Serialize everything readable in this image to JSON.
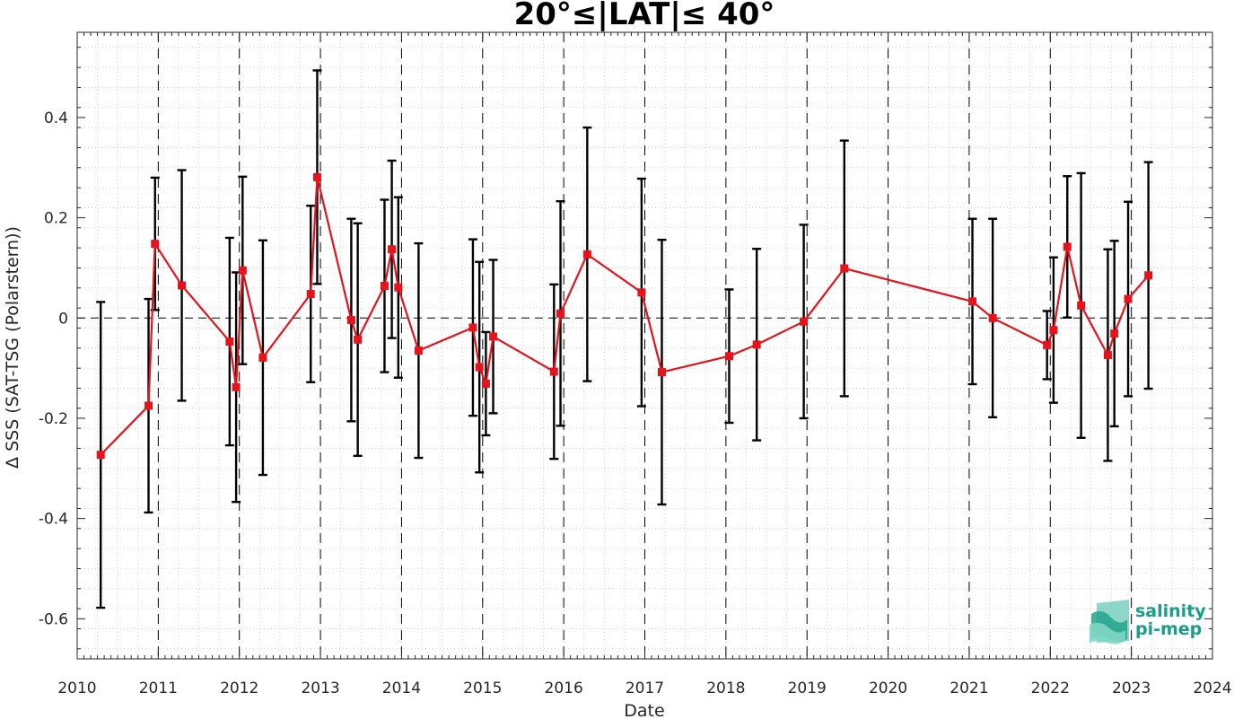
{
  "chart_data": {
    "type": "scatter",
    "title": "20°≤|LAT|≤ 40°",
    "xlabel": "Date",
    "ylabel": "Δ SSS (SAT-TSG (Polarstern))",
    "xlim": [
      2010,
      2024
    ],
    "ylim": [
      -0.68,
      0.57
    ],
    "x_ticks": [
      "2010",
      "2011",
      "2012",
      "2013",
      "2014",
      "2015",
      "2016",
      "2017",
      "2018",
      "2019",
      "2020",
      "2021",
      "2022",
      "2023",
      "2024"
    ],
    "y_ticks": [
      "-0.6",
      "-0.4",
      "-0.2",
      "0",
      "0.2",
      "0.4"
    ],
    "grid": true,
    "zero_line": true,
    "year_dividers": true,
    "colors": {
      "line": "#e6131d",
      "marker": "#e6131d",
      "errorbar": "#000000",
      "grid": "#c8c8c8"
    },
    "series": [
      {
        "x": [
          2010.29,
          2010.88,
          2010.96,
          2011.29,
          2011.88,
          2011.96,
          2012.04,
          2012.29,
          2012.88,
          2012.96,
          2013.38,
          2013.46,
          2013.79,
          2013.88,
          2013.96,
          2014.21,
          2014.88,
          2014.96,
          2015.04,
          2015.13,
          2015.88,
          2015.96,
          2016.29,
          2016.96,
          2017.21,
          2018.04,
          2018.38,
          2018.96,
          2019.46,
          2021.04,
          2021.29,
          2021.96,
          2022.04,
          2022.21,
          2022.38,
          2022.71,
          2022.79,
          2022.96,
          2023.21
        ],
        "y": [
          -0.273,
          -0.175,
          0.148,
          0.065,
          -0.047,
          -0.138,
          0.095,
          -0.079,
          0.048,
          0.281,
          -0.004,
          -0.043,
          0.064,
          0.137,
          0.061,
          -0.065,
          -0.019,
          -0.098,
          -0.131,
          -0.037,
          -0.107,
          0.009,
          0.127,
          0.051,
          -0.108,
          -0.076,
          -0.053,
          -0.007,
          0.099,
          0.033,
          0.0,
          -0.054,
          -0.024,
          0.142,
          0.025,
          -0.074,
          -0.031,
          0.038,
          0.085
        ],
        "err": [
          0.305,
          0.213,
          0.132,
          0.23,
          0.207,
          0.229,
          0.187,
          0.234,
          0.176,
          0.213,
          0.202,
          0.232,
          0.172,
          0.177,
          0.18,
          0.214,
          0.176,
          0.21,
          0.103,
          0.153,
          0.174,
          0.224,
          0.253,
          0.227,
          0.264,
          0.133,
          0.191,
          0.193,
          0.255,
          0.165,
          0.198,
          0.068,
          0.145,
          0.141,
          0.264,
          0.211,
          0.185,
          0.194,
          0.226
        ]
      }
    ]
  },
  "logo": {
    "line1": "salinity",
    "line2": "pi-mep",
    "icon": "salinity-wave-logo-icon"
  }
}
